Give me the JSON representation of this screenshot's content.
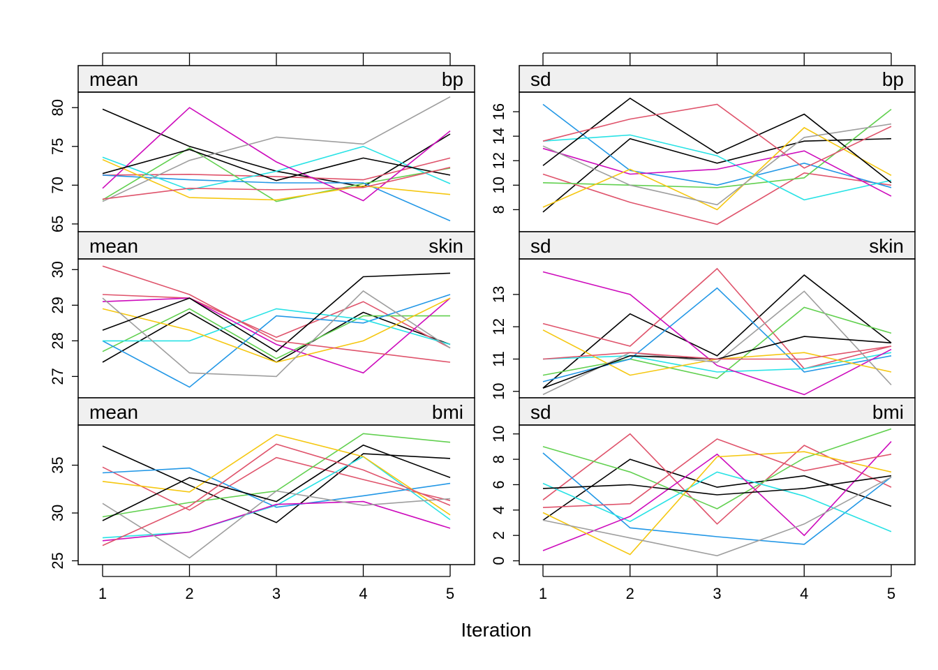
{
  "chart_data": {
    "type": "line",
    "xlabel": "Iteration",
    "x": [
      1,
      2,
      3,
      4,
      5
    ],
    "x_ticks": [
      1,
      2,
      3,
      4,
      5
    ],
    "series_colors": [
      "#000000",
      "#DF536B",
      "#61D04F",
      "#2297E6",
      "#28E2E5",
      "#CD0BBC",
      "#F5C710",
      "#9E9E9E",
      "#000000",
      "#DF536B"
    ],
    "strip_background": "#F0F0F0",
    "panels": [
      {
        "id": "mean-bp",
        "statistic": "mean",
        "variable": "bp",
        "ylim": [
          64,
          82
        ],
        "yticks": [
          65,
          70,
          75,
          80
        ],
        "series": [
          [
            79.8,
            75.0,
            71.8,
            69.8,
            76.6
          ],
          [
            71.3,
            71.4,
            71.1,
            70.7,
            73.5
          ],
          [
            68.1,
            74.8,
            67.9,
            70.2,
            72.2
          ],
          [
            71.3,
            70.7,
            70.3,
            70.3,
            65.4
          ],
          [
            73.6,
            69.4,
            71.8,
            75.0,
            70.2
          ],
          [
            69.6,
            80.0,
            73.0,
            68.0,
            77.0
          ],
          [
            73.3,
            68.4,
            68.1,
            69.9,
            68.8
          ],
          [
            67.9,
            73.2,
            76.2,
            75.3,
            81.4
          ],
          [
            71.5,
            74.6,
            70.6,
            73.5,
            71.3
          ],
          [
            68.2,
            69.6,
            69.4,
            69.7,
            72.3
          ]
        ]
      },
      {
        "id": "sd-bp",
        "statistic": "sd",
        "variable": "bp",
        "ylim": [
          6.2,
          17.6
        ],
        "yticks": [
          8,
          10,
          12,
          14,
          16
        ],
        "series": [
          [
            7.8,
            13.8,
            11.8,
            13.6,
            13.8
          ],
          [
            10.9,
            8.6,
            6.8,
            11.0,
            10.0
          ],
          [
            10.2,
            10.0,
            9.8,
            10.6,
            16.2
          ],
          [
            16.6,
            11.2,
            10.0,
            11.8,
            9.8
          ],
          [
            13.6,
            14.1,
            12.4,
            8.8,
            10.4
          ],
          [
            13.0,
            10.9,
            11.3,
            12.8,
            9.1
          ],
          [
            8.2,
            11.3,
            8.0,
            14.7,
            10.8
          ],
          [
            13.2,
            10.0,
            8.4,
            13.9,
            15.0
          ],
          [
            11.6,
            17.1,
            12.6,
            15.8,
            10.2
          ],
          [
            13.6,
            15.4,
            16.6,
            11.4,
            14.8
          ]
        ]
      },
      {
        "id": "mean-skin",
        "statistic": "mean",
        "variable": "skin",
        "ylim": [
          26.4,
          30.3
        ],
        "yticks": [
          27,
          28,
          29,
          30
        ],
        "series": [
          [
            27.4,
            28.8,
            27.4,
            28.8,
            27.9
          ],
          [
            29.3,
            29.2,
            28.1,
            29.1,
            27.8
          ],
          [
            27.7,
            28.9,
            27.5,
            28.7,
            28.7
          ],
          [
            28.0,
            26.7,
            28.7,
            28.5,
            29.3
          ],
          [
            28.0,
            28.0,
            28.9,
            28.6,
            27.9
          ],
          [
            29.1,
            29.2,
            27.9,
            27.1,
            29.2
          ],
          [
            28.9,
            28.3,
            27.4,
            28.0,
            29.2
          ],
          [
            29.2,
            27.1,
            27.0,
            29.4,
            27.8
          ],
          [
            28.3,
            29.2,
            27.7,
            29.8,
            29.9
          ],
          [
            30.1,
            29.3,
            28.0,
            27.7,
            27.4
          ]
        ]
      },
      {
        "id": "sd-skin",
        "statistic": "sd",
        "variable": "skin",
        "ylim": [
          9.8,
          14.1
        ],
        "yticks": [
          10,
          11,
          12,
          13
        ],
        "series": [
          [
            10.1,
            12.4,
            11.1,
            13.6,
            11.5
          ],
          [
            12.1,
            11.4,
            13.8,
            10.7,
            11.4
          ],
          [
            10.5,
            11.0,
            10.4,
            12.6,
            11.8
          ],
          [
            10.3,
            11.0,
            13.2,
            10.6,
            11.1
          ],
          [
            11.0,
            11.1,
            10.6,
            10.7,
            11.2
          ],
          [
            13.7,
            13.0,
            10.8,
            9.9,
            11.3
          ],
          [
            11.9,
            10.5,
            11.0,
            11.2,
            10.6
          ],
          [
            9.9,
            11.2,
            10.9,
            13.1,
            10.2
          ],
          [
            10.1,
            11.1,
            11.0,
            11.7,
            11.5
          ],
          [
            11.0,
            11.2,
            11.0,
            11.0,
            11.4
          ]
        ]
      },
      {
        "id": "mean-bmi",
        "statistic": "mean",
        "variable": "bmi",
        "ylim": [
          24.6,
          39.2
        ],
        "yticks": [
          25,
          30,
          35
        ],
        "series": [
          [
            37.0,
            32.9,
            29.0,
            36.2,
            35.7
          ],
          [
            34.8,
            30.3,
            35.8,
            33.5,
            31.3
          ],
          [
            29.6,
            31.1,
            32.3,
            38.3,
            37.4
          ],
          [
            34.2,
            34.7,
            30.6,
            31.8,
            33.1
          ],
          [
            27.4,
            28.0,
            30.8,
            35.9,
            29.3
          ],
          [
            27.1,
            28.0,
            30.9,
            31.2,
            28.4
          ],
          [
            33.3,
            32.2,
            38.2,
            35.9,
            29.8
          ],
          [
            31.0,
            25.3,
            32.3,
            30.8,
            31.5
          ],
          [
            29.2,
            33.7,
            31.2,
            37.1,
            33.7
          ],
          [
            26.6,
            30.7,
            37.2,
            34.5,
            30.8
          ]
        ]
      },
      {
        "id": "sd-bmi",
        "statistic": "sd",
        "variable": "bmi",
        "ylim": [
          -0.3,
          10.7
        ],
        "yticks": [
          0,
          2,
          4,
          6,
          8,
          10
        ],
        "series": [
          [
            3.2,
            8.0,
            5.8,
            6.7,
            4.3
          ],
          [
            4.8,
            10.0,
            2.9,
            9.1,
            5.8
          ],
          [
            9.0,
            7.0,
            4.1,
            8.1,
            10.4
          ],
          [
            8.5,
            2.6,
            1.9,
            1.3,
            6.6
          ],
          [
            6.1,
            3.1,
            7.0,
            5.1,
            2.3
          ],
          [
            0.8,
            3.5,
            8.4,
            2.0,
            9.4
          ],
          [
            3.8,
            0.5,
            8.2,
            8.6,
            7.0
          ],
          [
            3.2,
            1.8,
            0.4,
            2.9,
            6.6
          ],
          [
            5.7,
            6.0,
            5.2,
            5.7,
            6.7
          ],
          [
            4.2,
            4.5,
            9.6,
            7.1,
            8.4
          ]
        ]
      }
    ]
  }
}
